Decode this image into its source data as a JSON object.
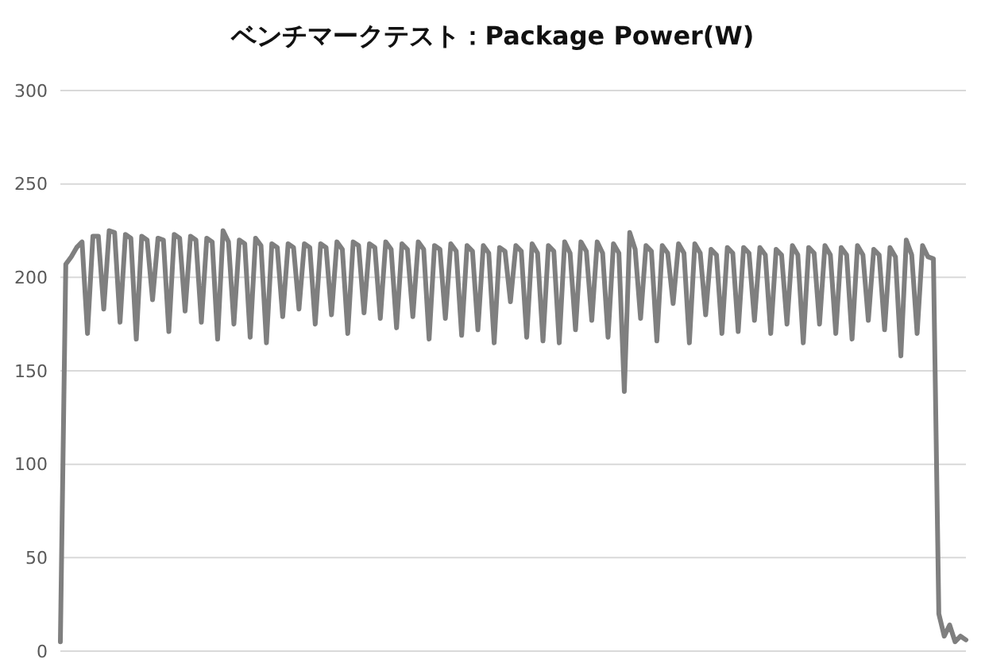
{
  "chart_data": {
    "type": "line",
    "title": "ベンチマークテスト：Package Power(W)",
    "categories": [
      null,
      null,
      null,
      null,
      null,
      null,
      null,
      null,
      null,
      null,
      null,
      null,
      null,
      null,
      null,
      null,
      null,
      null,
      null,
      null,
      null,
      null,
      null,
      null,
      null,
      null,
      null,
      null,
      null,
      null,
      null,
      null,
      null,
      null,
      null,
      null,
      null,
      null,
      null,
      null,
      null,
      null,
      null,
      null,
      null,
      null,
      null,
      null,
      null,
      null,
      null,
      null,
      null,
      null,
      null,
      null,
      null,
      null,
      null,
      null,
      null,
      null,
      null,
      null,
      null,
      null,
      null,
      null,
      null,
      null,
      null,
      null,
      null,
      null,
      null,
      null,
      null,
      null,
      null,
      null,
      null,
      null,
      null,
      null,
      null,
      null,
      null,
      null,
      null,
      null,
      null,
      null,
      null,
      null,
      null,
      null,
      null,
      null,
      null,
      null,
      null,
      null,
      null,
      null,
      null,
      null,
      null,
      null,
      null,
      null,
      null,
      null,
      null,
      null,
      null,
      null,
      null,
      null,
      null,
      null,
      null,
      null,
      null,
      null,
      null,
      null,
      null,
      null,
      null,
      null,
      null,
      null,
      null,
      null,
      null,
      null,
      null,
      null,
      null,
      null,
      null,
      null,
      null,
      null,
      null,
      null,
      null,
      null,
      null,
      null,
      null,
      null,
      null,
      null,
      null,
      null,
      null,
      null,
      null,
      null,
      null,
      null,
      null,
      null,
      null,
      null,
      null,
      null
    ],
    "series": [
      {
        "color": "#7f7f7f",
        "values": [
          5,
          207,
          211,
          216,
          219,
          170,
          222,
          222,
          183,
          225,
          224,
          176,
          223,
          221,
          167,
          222,
          220,
          188,
          221,
          220,
          171,
          223,
          221,
          182,
          222,
          220,
          176,
          221,
          219,
          167,
          225,
          219,
          175,
          220,
          218,
          168,
          221,
          217,
          165,
          218,
          216,
          179,
          218,
          216,
          183,
          218,
          216,
          175,
          218,
          216,
          180,
          219,
          215,
          170,
          219,
          217,
          181,
          218,
          216,
          178,
          219,
          215,
          173,
          218,
          215,
          179,
          219,
          215,
          167,
          217,
          215,
          178,
          218,
          214,
          169,
          217,
          214,
          172,
          217,
          213,
          165,
          216,
          214,
          187,
          217,
          214,
          168,
          218,
          213,
          166,
          217,
          214,
          165,
          219,
          213,
          172,
          219,
          214,
          177,
          219,
          213,
          168,
          218,
          213,
          139,
          224,
          215,
          178,
          217,
          214,
          166,
          217,
          213,
          186,
          218,
          213,
          165,
          218,
          213,
          180,
          215,
          212,
          170,
          216,
          213,
          171,
          216,
          213,
          177,
          216,
          212,
          170,
          215,
          212,
          175,
          217,
          212,
          165,
          216,
          213,
          175,
          217,
          212,
          170,
          216,
          212,
          167,
          217,
          212,
          177,
          215,
          212,
          172,
          216,
          211,
          158,
          220,
          212,
          170,
          217,
          211,
          210,
          20,
          8,
          14,
          5,
          8,
          6
        ]
      }
    ],
    "ylim": [
      0,
      300
    ],
    "yticks": [
      0,
      50,
      100,
      150,
      200,
      250,
      300
    ],
    "grid": "y",
    "tick_labels": "y",
    "marker": "none",
    "line_style": "solid"
  }
}
